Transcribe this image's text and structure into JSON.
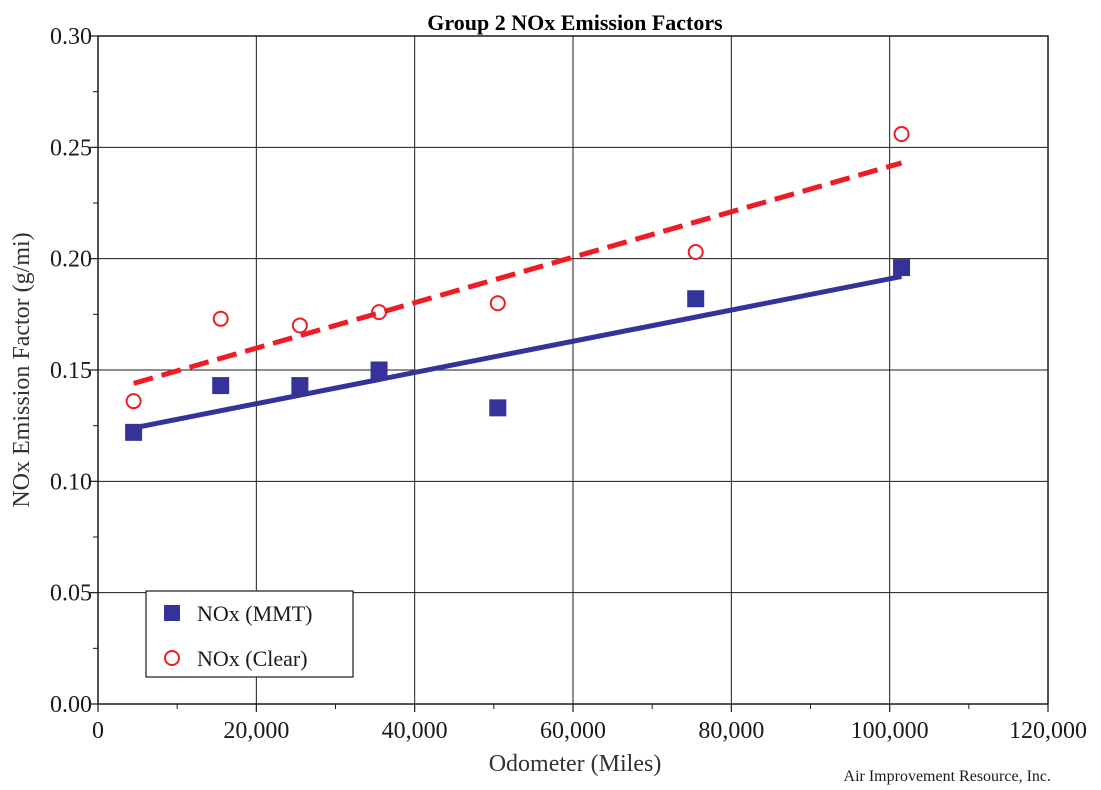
{
  "chart_data": {
    "type": "scatter",
    "title": "Group 2 NOx Emission Factors",
    "xlabel": "Odometer (Miles)",
    "ylabel": "NOx Emission Factor (g/mi)",
    "xlim": [
      0,
      120000
    ],
    "ylim": [
      0,
      0.3
    ],
    "x_ticks": [
      0,
      20000,
      40000,
      60000,
      80000,
      100000,
      120000
    ],
    "x_tick_labels": [
      "0",
      "20,000",
      "40,000",
      "60,000",
      "80,000",
      "100,000",
      "120,000"
    ],
    "y_ticks": [
      0,
      0.05,
      0.1,
      0.15,
      0.2,
      0.25,
      0.3
    ],
    "y_tick_labels": [
      "0.00",
      "0.05",
      "0.10",
      "0.15",
      "0.20",
      "0.25",
      "0.30"
    ],
    "grid": true,
    "legend_position": "bottom-left",
    "series": [
      {
        "name": "NOx (MMT)",
        "marker": "filled-square",
        "color": "#333399",
        "points": [
          {
            "x": 4500,
            "y": 0.122
          },
          {
            "x": 15500,
            "y": 0.143
          },
          {
            "x": 25500,
            "y": 0.143
          },
          {
            "x": 35500,
            "y": 0.15
          },
          {
            "x": 50500,
            "y": 0.133
          },
          {
            "x": 75500,
            "y": 0.182
          },
          {
            "x": 101500,
            "y": 0.196
          }
        ],
        "trendline": {
          "style": "solid",
          "color": "#333399",
          "from": {
            "x": 4500,
            "y": 0.124
          },
          "to": {
            "x": 101500,
            "y": 0.192
          }
        }
      },
      {
        "name": "NOx (Clear)",
        "marker": "open-circle",
        "color": "#ee1c24",
        "points": [
          {
            "x": 4500,
            "y": 0.136
          },
          {
            "x": 15500,
            "y": 0.173
          },
          {
            "x": 25500,
            "y": 0.17
          },
          {
            "x": 35500,
            "y": 0.176
          },
          {
            "x": 50500,
            "y": 0.18
          },
          {
            "x": 75500,
            "y": 0.203
          },
          {
            "x": 101500,
            "y": 0.256
          }
        ],
        "trendline": {
          "style": "dashed",
          "color": "#ee1c24",
          "from": {
            "x": 4500,
            "y": 0.144
          },
          "to": {
            "x": 101500,
            "y": 0.243
          }
        }
      }
    ]
  },
  "credit": "Air Improvement Resource, Inc."
}
